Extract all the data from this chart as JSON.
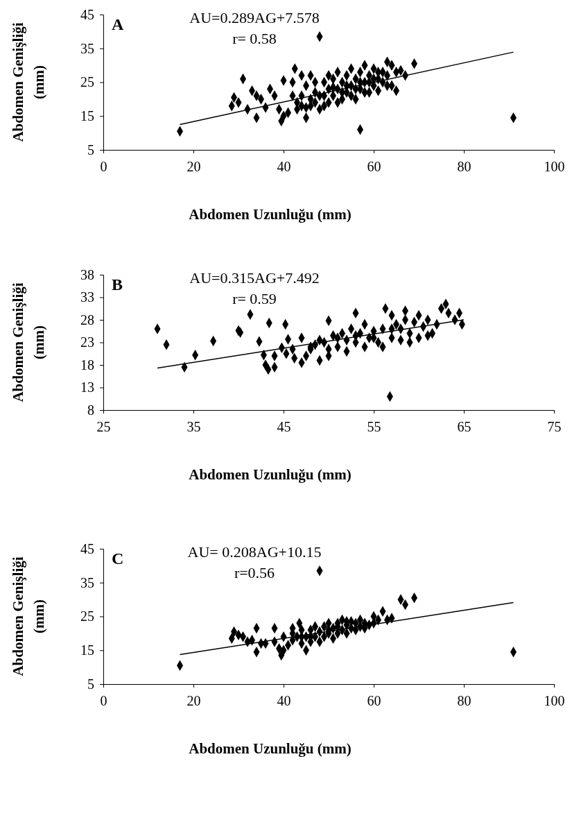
{
  "chart_data": [
    {
      "type": "scatter",
      "title": "A",
      "xlabel": "Abdomen Uzunluğu (mm)",
      "ylabel": "Abdomen Genişliği (mm)",
      "annotations": [
        "AU=0.289AG+7.578",
        "r= 0.58"
      ],
      "xlim": [
        0,
        100
      ],
      "xticks": [
        0,
        20,
        40,
        60,
        80,
        100
      ],
      "ylim": [
        5,
        45
      ],
      "yticks": [
        5,
        15,
        25,
        35,
        45
      ],
      "grid": false,
      "series": [
        {
          "marker": "diamond",
          "color": "#000000",
          "x": [
            17,
            91,
            48,
            57,
            31,
            28.5,
            29,
            30,
            32,
            33,
            34,
            34,
            35,
            36,
            37,
            38,
            39,
            39.5,
            40,
            40,
            41,
            42,
            42,
            42.5,
            43,
            44,
            44,
            45,
            45,
            46,
            46,
            47,
            48,
            48,
            49,
            50,
            50,
            51,
            51,
            52,
            52,
            53,
            53,
            54,
            54,
            55,
            55,
            56,
            56,
            57,
            57,
            58,
            58,
            59,
            59,
            60,
            60,
            61,
            61,
            62,
            62,
            63,
            63,
            64,
            65,
            66,
            67,
            69,
            44,
            46,
            47,
            49,
            50,
            52,
            54,
            56,
            58,
            60,
            43,
            45,
            47,
            49,
            51,
            53,
            55,
            57,
            59,
            61,
            63,
            64,
            65
          ],
          "values": [
            10.5,
            14.5,
            38.5,
            11,
            26,
            18,
            20.5,
            19,
            17,
            22.5,
            14.5,
            21,
            20,
            17.5,
            23,
            21,
            17,
            13.5,
            25.5,
            15,
            16,
            25,
            21,
            29,
            19,
            27,
            18,
            14.5,
            24,
            27,
            20,
            22,
            17,
            21,
            25,
            19,
            23,
            26,
            21,
            28,
            23,
            20,
            25,
            22,
            27,
            24,
            29,
            20,
            26,
            23,
            28,
            25,
            30,
            22,
            27,
            24,
            29,
            26,
            22.5,
            28,
            25,
            31,
            24,
            30,
            28,
            28.5,
            27,
            30.5,
            21,
            18,
            25,
            21,
            27,
            19,
            24,
            23,
            22,
            26,
            17,
            17.5,
            19,
            18,
            23.5,
            22,
            21,
            25,
            25,
            28,
            27,
            24,
            22.5
          ]
        },
        {
          "type": "line",
          "color": "#000000",
          "x": [
            17,
            91
          ],
          "values": [
            12.5,
            33.9
          ]
        }
      ]
    },
    {
      "type": "scatter",
      "title": "B",
      "xlabel": "Abdomen Uzunluğu (mm)",
      "ylabel": "Abdomen Genişliği (mm)",
      "annotations": [
        "AU=0.315AG+7.492",
        "r= 0.59"
      ],
      "xlim": [
        25,
        75
      ],
      "xticks": [
        25,
        35,
        45,
        55,
        65,
        75
      ],
      "ylim": [
        8,
        38
      ],
      "yticks": [
        8,
        13,
        18,
        23,
        28,
        33,
        38
      ],
      "grid": false,
      "series": [
        {
          "marker": "diamond",
          "color": "#000000",
          "x": [
            31,
            32,
            34,
            35.2,
            37.2,
            40,
            40.2,
            41.3,
            42.3,
            43.4,
            42.8,
            43,
            43.3,
            44,
            44,
            44.8,
            45.2,
            45.5,
            45.3,
            46.2,
            47,
            47.5,
            48,
            48.5,
            49,
            49.5,
            50,
            50,
            50.5,
            51,
            51.5,
            52,
            52.5,
            53,
            53,
            53.5,
            54,
            54,
            54.5,
            55,
            55.5,
            56,
            56.3,
            56.8,
            57,
            57,
            57.5,
            58,
            58.5,
            58.5,
            59,
            59.5,
            60,
            60,
            60.5,
            61,
            61.5,
            62,
            62.5,
            63,
            63.3,
            64,
            64.5,
            64.8,
            48,
            49,
            51,
            52,
            53,
            55,
            56,
            57,
            58,
            59,
            61,
            46,
            47,
            50
          ],
          "values": [
            26,
            22.5,
            17.5,
            20.2,
            23.3,
            25.6,
            25.2,
            29.2,
            23.2,
            27.3,
            20.2,
            18,
            17,
            20,
            17.5,
            21.8,
            27,
            23.7,
            20.5,
            19.5,
            18.5,
            20,
            21.5,
            22.5,
            19,
            23,
            27.8,
            20,
            24.5,
            22,
            25,
            21,
            26,
            23,
            29.5,
            25,
            22,
            27,
            24,
            25.5,
            23,
            26,
            30.5,
            11,
            24,
            29,
            27,
            23.5,
            28,
            30,
            25,
            27.5,
            24,
            29,
            26.5,
            28,
            25,
            27,
            30.5,
            31.5,
            29.5,
            28,
            29.5,
            27,
            22,
            23.5,
            24,
            23.5,
            24.5,
            24,
            22,
            26,
            26,
            23,
            24.5,
            21.5,
            24,
            21.5
          ]
        },
        {
          "type": "line",
          "color": "#000000",
          "x": [
            31,
            65
          ],
          "values": [
            17.3,
            28
          ]
        }
      ]
    },
    {
      "type": "scatter",
      "title": "C",
      "xlabel": "Abdomen Uzunluğu (mm)",
      "ylabel": "Abdomen Genişliği (mm)",
      "annotations": [
        "AU= 0.208AG+10.15",
        "r=0.56"
      ],
      "xlim": [
        0,
        100
      ],
      "xticks": [
        0,
        20,
        40,
        60,
        80,
        100
      ],
      "ylim": [
        5,
        45
      ],
      "yticks": [
        5,
        15,
        25,
        35,
        45
      ],
      "grid": false,
      "series": [
        {
          "marker": "diamond",
          "color": "#000000",
          "x": [
            17,
            91,
            48,
            66,
            67,
            69,
            28.5,
            29,
            30,
            31,
            32,
            33,
            34,
            34,
            35,
            36,
            38,
            38,
            39,
            39.5,
            40,
            40,
            41,
            42,
            42,
            43,
            43.5,
            44,
            44,
            45,
            45,
            46,
            46,
            47,
            47,
            48,
            48,
            49,
            49,
            50,
            50,
            51,
            51,
            52,
            52,
            53,
            53,
            54,
            54,
            55,
            55,
            56,
            56,
            57,
            57,
            58,
            58,
            59,
            60,
            60,
            61,
            62,
            63,
            64,
            42,
            44,
            46,
            50,
            52,
            54
          ],
          "values": [
            10.5,
            14.5,
            38.5,
            30,
            28.5,
            30.5,
            18.5,
            20.5,
            19.5,
            19,
            17.5,
            18,
            14.5,
            21.5,
            17,
            17,
            17.5,
            21.5,
            15.5,
            13.5,
            15,
            19,
            16.5,
            18,
            21.5,
            19,
            23,
            17,
            21,
            15,
            19,
            17.5,
            21,
            19,
            22,
            17.5,
            20.5,
            19,
            22,
            20,
            23,
            18.5,
            21.5,
            20,
            23,
            21,
            24,
            20,
            22.5,
            21.5,
            23.5,
            21,
            23,
            22,
            24,
            21.5,
            23,
            22.5,
            23,
            25,
            24,
            26.5,
            24,
            24.5,
            20,
            19,
            19,
            21,
            22,
            23.5
          ]
        },
        {
          "type": "line",
          "color": "#000000",
          "x": [
            17,
            91
          ],
          "values": [
            13.7,
            29.1
          ]
        }
      ]
    }
  ]
}
